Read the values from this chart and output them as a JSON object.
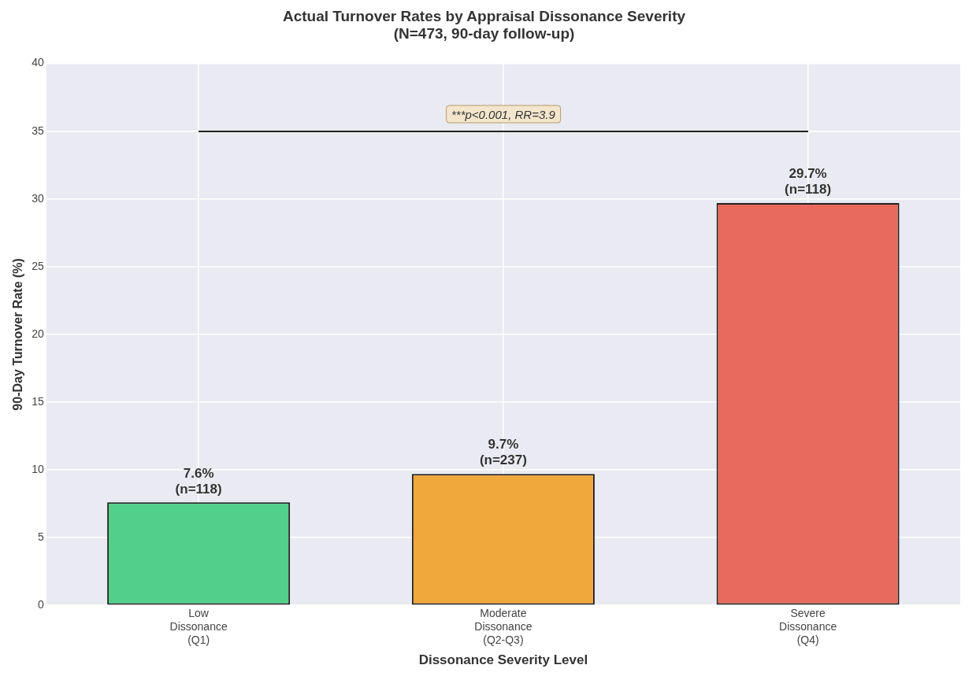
{
  "chart_data": {
    "type": "bar",
    "title": "Actual Turnover Rates by Appraisal Dissonance Severity\n(N=473, 90-day follow-up)",
    "xlabel": "Dissonance Severity Level",
    "ylabel": "90-Day Turnover Rate (%)",
    "categories": [
      "Low\nDissonance\n(Q1)",
      "Moderate\nDissonance\n(Q2-Q3)",
      "Severe\nDissonance\n(Q4)"
    ],
    "values": [
      7.6,
      9.7,
      29.7
    ],
    "colors": [
      "#52d089",
      "#f0a83c",
      "#e8695e"
    ],
    "value_labels": [
      "7.6%\n(n=118)",
      "9.7%\n(n=237)",
      "29.7%\n(n=118)"
    ],
    "ylim": [
      0,
      40
    ],
    "yticks": [
      0,
      5,
      10,
      15,
      20,
      25,
      30,
      35,
      40
    ],
    "grid": true,
    "annotations": [
      "***p<0.001, RR=3.9"
    ]
  }
}
